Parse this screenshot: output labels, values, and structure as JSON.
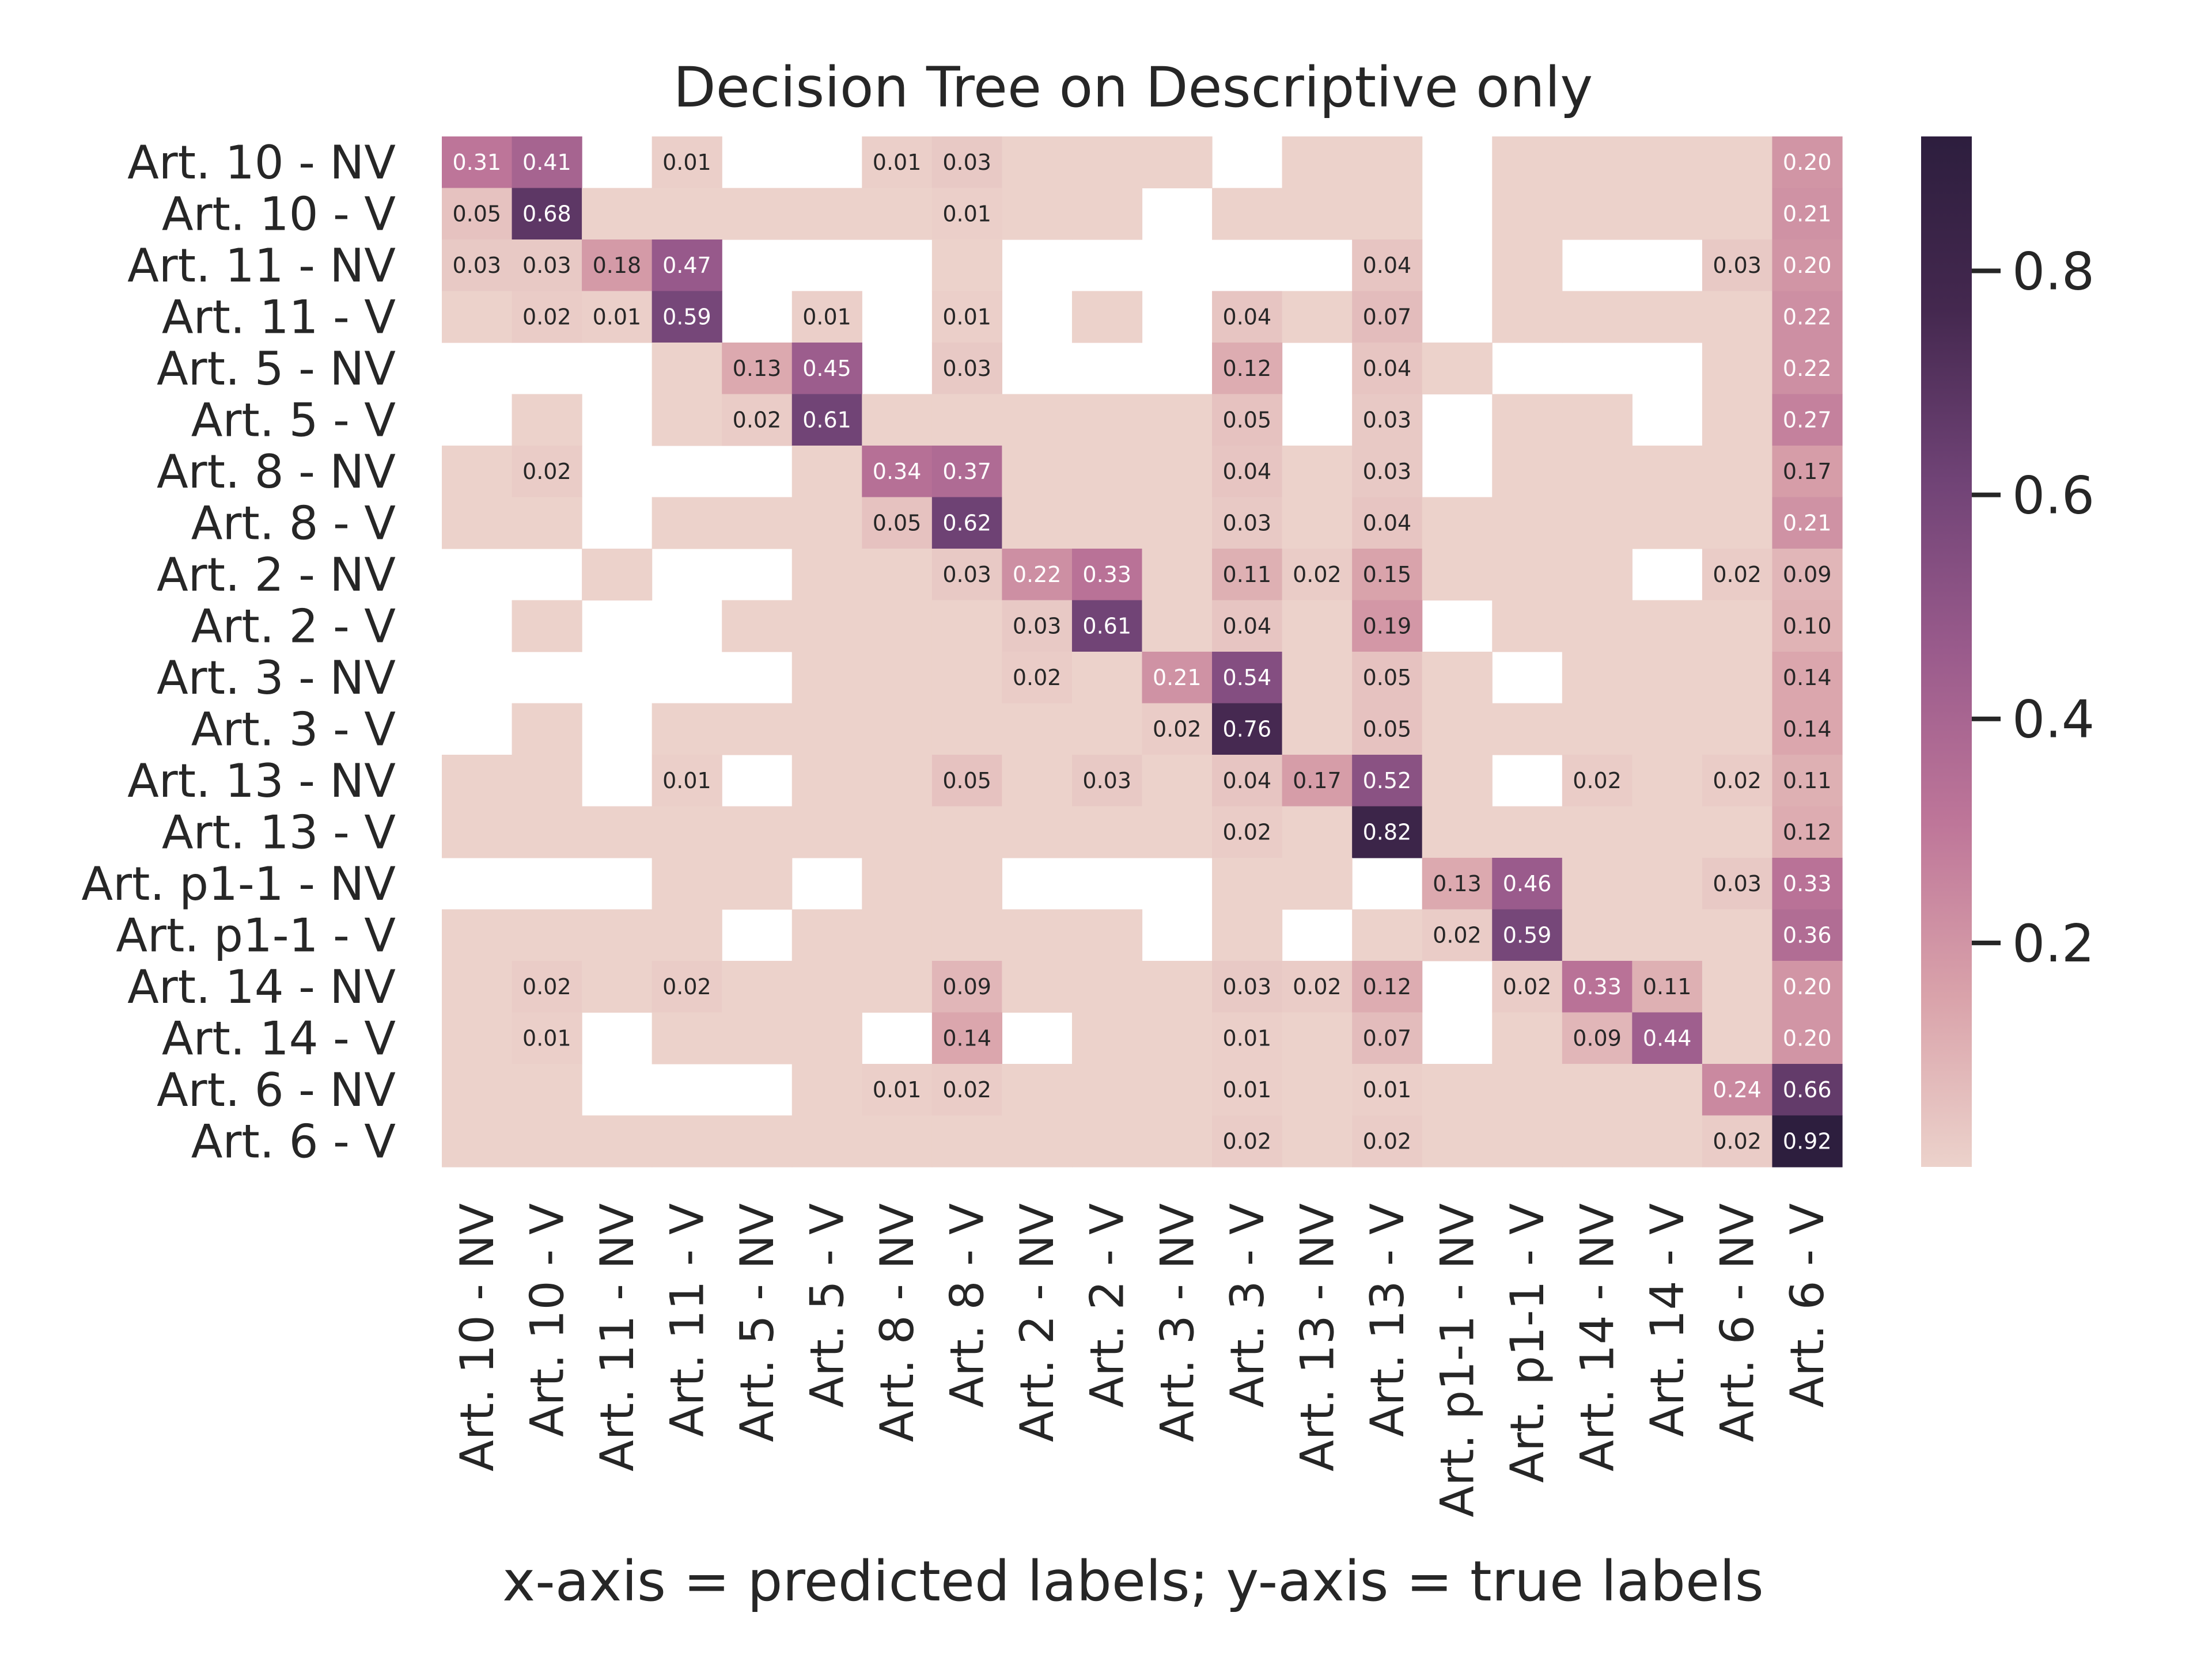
{
  "chart_data": {
    "type": "heatmap",
    "title": "Decision Tree on Descriptive only",
    "xlabel": "x-axis = predicted labels; y-axis = true labels",
    "ylabel": "",
    "labels": [
      "Art. 10 - NV",
      "Art. 10 - V",
      "Art. 11 - NV",
      "Art. 11 - V",
      "Art. 5 - NV",
      "Art. 5 - V",
      "Art. 8 - NV",
      "Art. 8 - V",
      "Art. 2 - NV",
      "Art. 2 - V",
      "Art. 3 - NV",
      "Art. 3 - V",
      "Art. 13 - NV",
      "Art. 13 - V",
      "Art. p1-1 - NV",
      "Art. p1-1 - V",
      "Art. 14 - NV",
      "Art. 14 - V",
      "Art. 6 - NV",
      "Art. 6 - V"
    ],
    "matrix": [
      [
        0.31,
        0.41,
        null,
        0.01,
        null,
        null,
        0.01,
        0.03,
        0.0,
        0.0,
        0.0,
        null,
        0.0,
        0.0,
        null,
        0.0,
        0.0,
        0.0,
        0.0,
        0.2
      ],
      [
        0.05,
        0.68,
        0.0,
        0.0,
        0.0,
        0.0,
        0.0,
        0.01,
        0.0,
        0.0,
        null,
        0.0,
        0.0,
        0.0,
        null,
        0.0,
        0.0,
        0.0,
        0.0,
        0.21
      ],
      [
        0.03,
        0.03,
        0.18,
        0.47,
        null,
        null,
        null,
        0.0,
        null,
        null,
        null,
        null,
        null,
        0.04,
        null,
        0.0,
        null,
        null,
        0.03,
        0.2
      ],
      [
        0.0,
        0.02,
        0.01,
        0.59,
        null,
        0.01,
        null,
        0.01,
        null,
        0.0,
        null,
        0.04,
        0.0,
        0.07,
        null,
        0.0,
        0.0,
        0.0,
        0.0,
        0.22
      ],
      [
        null,
        null,
        null,
        0.0,
        0.13,
        0.45,
        null,
        0.03,
        null,
        null,
        null,
        0.12,
        null,
        0.04,
        0.0,
        null,
        null,
        null,
        0.0,
        0.22
      ],
      [
        null,
        0.0,
        null,
        0.0,
        0.02,
        0.61,
        0.0,
        0.0,
        0.0,
        0.0,
        0.0,
        0.05,
        null,
        0.03,
        null,
        0.0,
        0.0,
        null,
        0.0,
        0.27
      ],
      [
        0.0,
        0.02,
        null,
        null,
        null,
        0.0,
        0.34,
        0.37,
        0.0,
        0.0,
        0.0,
        0.04,
        0.0,
        0.03,
        null,
        0.0,
        0.0,
        0.0,
        0.0,
        0.17
      ],
      [
        0.0,
        0.0,
        null,
        0.0,
        0.0,
        0.0,
        0.05,
        0.62,
        0.0,
        0.0,
        0.0,
        0.03,
        0.0,
        0.04,
        0.0,
        0.0,
        0.0,
        0.0,
        0.0,
        0.21
      ],
      [
        null,
        null,
        0.0,
        null,
        null,
        0.0,
        0.0,
        0.03,
        0.22,
        0.33,
        0.0,
        0.11,
        0.02,
        0.15,
        0.0,
        0.0,
        0.0,
        null,
        0.02,
        0.09
      ],
      [
        null,
        0.0,
        null,
        null,
        0.0,
        0.0,
        0.0,
        0.0,
        0.03,
        0.61,
        0.0,
        0.04,
        0.0,
        0.19,
        null,
        0.0,
        0.0,
        0.0,
        0.0,
        0.1
      ],
      [
        null,
        null,
        null,
        null,
        null,
        0.0,
        0.0,
        0.0,
        0.02,
        0.0,
        0.21,
        0.54,
        0.0,
        0.05,
        0.0,
        null,
        0.0,
        0.0,
        0.0,
        0.14
      ],
      [
        null,
        0.0,
        null,
        0.0,
        0.0,
        0.0,
        0.0,
        0.0,
        0.0,
        0.0,
        0.02,
        0.76,
        0.0,
        0.05,
        0.0,
        0.0,
        0.0,
        0.0,
        0.0,
        0.14
      ],
      [
        0.0,
        0.0,
        null,
        0.01,
        null,
        0.0,
        0.0,
        0.05,
        0.0,
        0.03,
        0.0,
        0.04,
        0.17,
        0.52,
        0.0,
        null,
        0.02,
        0.0,
        0.02,
        0.11
      ],
      [
        0.0,
        0.0,
        0.0,
        0.0,
        0.0,
        0.0,
        0.0,
        0.0,
        0.0,
        0.0,
        0.0,
        0.02,
        0.0,
        0.82,
        0.0,
        0.0,
        0.0,
        0.0,
        0.0,
        0.12
      ],
      [
        null,
        null,
        null,
        0.0,
        0.0,
        null,
        0.0,
        0.0,
        null,
        null,
        null,
        0.0,
        0.0,
        null,
        0.13,
        0.46,
        0.0,
        0.0,
        0.03,
        0.33
      ],
      [
        0.0,
        0.0,
        0.0,
        0.0,
        null,
        0.0,
        0.0,
        0.0,
        0.0,
        0.0,
        null,
        0.0,
        null,
        0.0,
        0.02,
        0.59,
        0.0,
        0.0,
        0.0,
        0.36
      ],
      [
        0.0,
        0.02,
        0.0,
        0.02,
        0.0,
        0.0,
        0.0,
        0.09,
        0.0,
        0.0,
        0.0,
        0.03,
        0.02,
        0.12,
        null,
        0.02,
        0.33,
        0.11,
        0.0,
        0.2
      ],
      [
        0.0,
        0.01,
        null,
        0.0,
        0.0,
        0.0,
        null,
        0.14,
        null,
        0.0,
        0.0,
        0.01,
        0.0,
        0.07,
        null,
        0.0,
        0.09,
        0.44,
        0.0,
        0.2
      ],
      [
        0.0,
        0.0,
        null,
        null,
        null,
        0.0,
        0.01,
        0.02,
        0.0,
        0.0,
        0.0,
        0.01,
        0.0,
        0.01,
        0.0,
        0.0,
        0.0,
        0.0,
        0.24,
        0.66
      ],
      [
        0.0,
        0.0,
        0.0,
        0.0,
        0.0,
        0.0,
        0.0,
        0.0,
        0.0,
        0.0,
        0.0,
        0.02,
        0.0,
        0.02,
        0.0,
        0.0,
        0.0,
        0.0,
        0.02,
        0.92
      ]
    ],
    "value_format": "0.00",
    "hide_zero_annotations": true,
    "empty_cells": "blank (white)",
    "colorbar": {
      "min": 0.0,
      "max": 0.92,
      "ticks": [
        0.2,
        0.4,
        0.6,
        0.8
      ],
      "tick_labels": [
        "0.2",
        "0.4",
        "0.6",
        "0.8"
      ]
    },
    "colormap": [
      "#ecd2cb",
      "#d9a2aa",
      "#be7699",
      "#9a5b8c",
      "#704376",
      "#44284f",
      "#2d1e3e"
    ],
    "grid": false,
    "legend": "colorbar right"
  }
}
